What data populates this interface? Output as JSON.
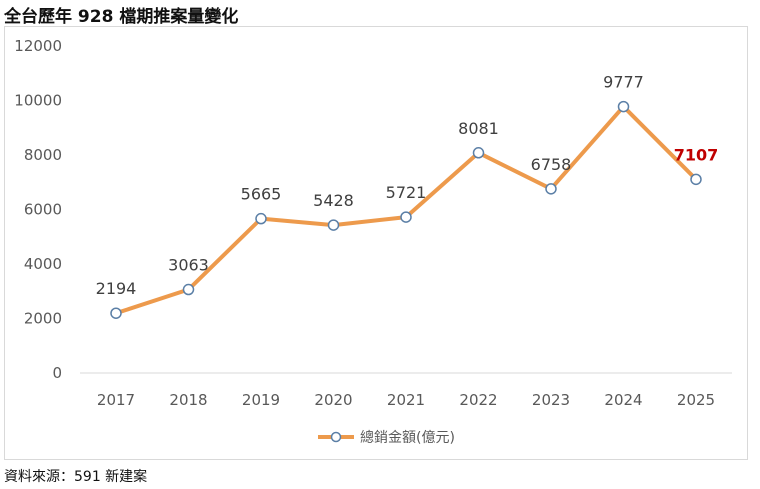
{
  "page": {
    "title": "全台歷年 928 檔期推案量變化",
    "source": "資料來源：591 新建案"
  },
  "colors": {
    "line": "#ed9a4c",
    "marker_fill": "#ffffff",
    "marker_stroke": "#5b7fa6",
    "highlight_label": "#c00000",
    "gridline": "#d9d9d9"
  },
  "chart_data": {
    "type": "line",
    "title": "",
    "xlabel": "",
    "ylabel": "",
    "categories": [
      "2017",
      "2018",
      "2019",
      "2020",
      "2021",
      "2022",
      "2023",
      "2024",
      "2025"
    ],
    "series": [
      {
        "name": "總銷金額(億元)",
        "values": [
          2194,
          3063,
          5665,
          5428,
          5721,
          8081,
          6758,
          9777,
          7107
        ]
      }
    ],
    "ylim": [
      0,
      12000
    ],
    "yticks": [
      0,
      2000,
      4000,
      6000,
      8000,
      10000,
      12000
    ],
    "grid": false,
    "legend_position": "bottom",
    "data_labels": true,
    "highlighted_label_index": 8
  }
}
